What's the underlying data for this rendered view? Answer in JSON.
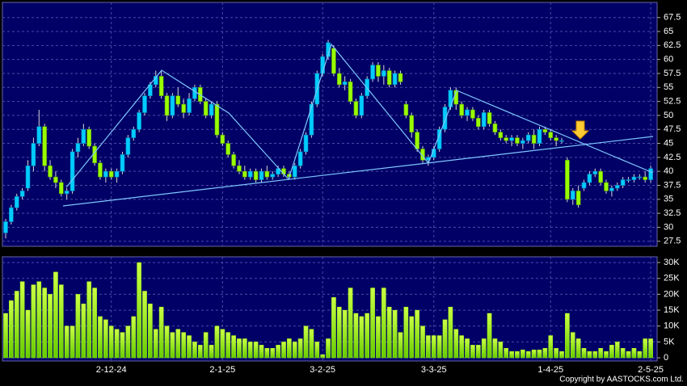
{
  "chart_data": [
    {
      "type": "candlestick",
      "up_color": "#00ccff",
      "down_color": "#99ff00",
      "wick_color": "#d8d8d8",
      "ylim": [
        26.6,
        70.2
      ],
      "yticks": [
        27.5,
        30,
        32.5,
        35,
        37.5,
        40,
        42.5,
        45,
        47.5,
        50,
        52.5,
        55,
        57.5,
        60,
        62.5,
        65,
        67.5
      ],
      "grid": true,
      "ohlc": [
        [
          29,
          31.5,
          28,
          31
        ],
        [
          31,
          34,
          30.5,
          33.5
        ],
        [
          33.5,
          36,
          33,
          35.5
        ],
        [
          35.5,
          37,
          35,
          36.5
        ],
        [
          37,
          42,
          36.5,
          41
        ],
        [
          41,
          46,
          40,
          45
        ],
        [
          45,
          51,
          44.5,
          48
        ],
        [
          48,
          48.5,
          40,
          41
        ],
        [
          41,
          42,
          38.5,
          39
        ],
        [
          39,
          40,
          37,
          38
        ],
        [
          38,
          38.5,
          35.5,
          36
        ],
        [
          36,
          37,
          35,
          36.5
        ],
        [
          36.5,
          44,
          36,
          43.5
        ],
        [
          43.5,
          46,
          42.5,
          45
        ],
        [
          45,
          48.5,
          44.5,
          47.5
        ],
        [
          47.5,
          48,
          44,
          44.5
        ],
        [
          44.5,
          45,
          41,
          41.5
        ],
        [
          41.5,
          42,
          38.5,
          39
        ],
        [
          39,
          40.5,
          38,
          40
        ],
        [
          40,
          40.5,
          38.5,
          39
        ],
        [
          39,
          40.5,
          38,
          40
        ],
        [
          40,
          43.5,
          39.5,
          43
        ],
        [
          43,
          46.5,
          42.5,
          46
        ],
        [
          46,
          48,
          45.5,
          47.5
        ],
        [
          47.5,
          51,
          47,
          50.5
        ],
        [
          50.5,
          54,
          50,
          53.5
        ],
        [
          53.5,
          56,
          53,
          55.5
        ],
        [
          55.5,
          58,
          55,
          57
        ],
        [
          57,
          58,
          53,
          53.5
        ],
        [
          53.5,
          54,
          49,
          50
        ],
        [
          50,
          54,
          49.5,
          53.5
        ],
        [
          53.5,
          55,
          51.5,
          52
        ],
        [
          52,
          53,
          49.5,
          50.5
        ],
        [
          50.5,
          54,
          50,
          53
        ],
        [
          53,
          55.5,
          52.5,
          55
        ],
        [
          55,
          55.5,
          52,
          52.5
        ],
        [
          52.5,
          53,
          49.5,
          50
        ],
        [
          50,
          52.5,
          49.5,
          52
        ],
        [
          52,
          52.5,
          46,
          46.5
        ],
        [
          46.5,
          47,
          44.5,
          45
        ],
        [
          45,
          45.5,
          42.5,
          43
        ],
        [
          43,
          43.5,
          40.5,
          41
        ],
        [
          41,
          42,
          39.5,
          40
        ],
        [
          40,
          41,
          38.5,
          39
        ],
        [
          39,
          40.5,
          38.5,
          40
        ],
        [
          40,
          40.5,
          38,
          38.5
        ],
        [
          38.5,
          40.5,
          38,
          40
        ],
        [
          40,
          41,
          38.5,
          39
        ],
        [
          39,
          40,
          38.5,
          39.5
        ],
        [
          39.5,
          41,
          39,
          40.5
        ],
        [
          40.5,
          41,
          39,
          39.5
        ],
        [
          39.5,
          40,
          38.5,
          39
        ],
        [
          39,
          41.5,
          38.5,
          41
        ],
        [
          41,
          44,
          40.5,
          43.5
        ],
        [
          43.5,
          47,
          43,
          46.5
        ],
        [
          46.5,
          52.5,
          46,
          52
        ],
        [
          52,
          58,
          51.5,
          57.5
        ],
        [
          57.5,
          61,
          57,
          60.5
        ],
        [
          60.5,
          63.5,
          60,
          63
        ],
        [
          62,
          62.5,
          57,
          57.5
        ],
        [
          57.5,
          58.5,
          55,
          55.5
        ],
        [
          55.5,
          57,
          54.5,
          56
        ],
        [
          56,
          56.5,
          52,
          52.5
        ],
        [
          52.5,
          53,
          49.5,
          50
        ],
        [
          50,
          54,
          49.5,
          53.5
        ],
        [
          53.5,
          57,
          53,
          56.5
        ],
        [
          56.5,
          59.5,
          56,
          59
        ],
        [
          59,
          59.5,
          56,
          57
        ],
        [
          57,
          59,
          55.5,
          58
        ],
        [
          58,
          58.5,
          55,
          55.5
        ],
        [
          55.5,
          58,
          55,
          57.5
        ],
        [
          57.5,
          58,
          55.5,
          56
        ],
        [
          52,
          52.5,
          49.5,
          50
        ],
        [
          50,
          50.5,
          46,
          47
        ],
        [
          47,
          47.5,
          43.5,
          44
        ],
        [
          44,
          44.5,
          41.5,
          42
        ],
        [
          42,
          43,
          41,
          42.5
        ],
        [
          42.5,
          44.5,
          42,
          44
        ],
        [
          44,
          48,
          43.5,
          47.5
        ],
        [
          47.5,
          52,
          47,
          51.5
        ],
        [
          51.5,
          55,
          51,
          54.5
        ],
        [
          54.5,
          55,
          51,
          52
        ],
        [
          52,
          52.5,
          49.5,
          50
        ],
        [
          50,
          51.5,
          49,
          51
        ],
        [
          51,
          51.5,
          49,
          49.5
        ],
        [
          49.5,
          50,
          47.5,
          48
        ],
        [
          48,
          51,
          47.5,
          50.5
        ],
        [
          50.5,
          51,
          48,
          48.5
        ],
        [
          48.5,
          49,
          46.5,
          47
        ],
        [
          47,
          47.5,
          45.5,
          46
        ],
        [
          46,
          46.5,
          45,
          45.5
        ],
        [
          45.5,
          46.5,
          44.5,
          46
        ],
        [
          46,
          46.5,
          44.5,
          45
        ],
        [
          45,
          46,
          44,
          45.5
        ],
        [
          45.5,
          47,
          45,
          46.5
        ],
        [
          46.5,
          47.5,
          44,
          45
        ],
        [
          45,
          48,
          44.5,
          47.5
        ],
        [
          47.5,
          48,
          46.5,
          47
        ],
        [
          47,
          47.5,
          45.5,
          46
        ],
        [
          46,
          46.5,
          44.5,
          45.5
        ],
        [
          45.5,
          46,
          45,
          45.5
        ],
        [
          42,
          42.5,
          34.5,
          35
        ],
        [
          35,
          37,
          34,
          36.5
        ],
        [
          36.5,
          37.5,
          33.5,
          34
        ],
        [
          37,
          38.5,
          36.5,
          38
        ],
        [
          38,
          40,
          37.5,
          39.5
        ],
        [
          39.5,
          40.5,
          39,
          40
        ],
        [
          40,
          40.5,
          37.5,
          38
        ],
        [
          38,
          38.5,
          36,
          36.5
        ],
        [
          36.5,
          37.5,
          35.5,
          37
        ],
        [
          37,
          38,
          36.5,
          37.5
        ],
        [
          37.5,
          39,
          37,
          38.5
        ],
        [
          38.5,
          39,
          38,
          38.5
        ],
        [
          38.5,
          39.5,
          38,
          39
        ],
        [
          39,
          39.5,
          38.5,
          39
        ],
        [
          39,
          40,
          38,
          38.5
        ],
        [
          38.5,
          41,
          38,
          40.5
        ]
      ]
    },
    {
      "type": "bar",
      "color": "#99ff00",
      "ylim": [
        -1000,
        31800
      ],
      "yticks": [
        0,
        {
          "value": 5000,
          "label": "5K"
        },
        {
          "value": 10000,
          "label": "10K"
        },
        {
          "value": 15000,
          "label": "15K"
        },
        {
          "value": 20000,
          "label": "20K"
        },
        {
          "value": 25000,
          "label": "25K"
        },
        {
          "value": 30000,
          "label": "30K"
        }
      ],
      "grid": true,
      "categories": [
        null,
        null,
        null,
        null,
        null,
        null,
        null,
        null,
        null,
        null,
        null,
        null,
        null,
        null,
        null,
        null,
        null,
        null,
        null,
        "2-12-24",
        null,
        null,
        null,
        null,
        null,
        null,
        null,
        null,
        null,
        null,
        null,
        null,
        null,
        null,
        null,
        null,
        null,
        null,
        null,
        "2-1-25",
        null,
        null,
        null,
        null,
        null,
        null,
        null,
        null,
        null,
        null,
        null,
        null,
        null,
        null,
        null,
        null,
        null,
        "3-2-25",
        null,
        null,
        null,
        null,
        null,
        null,
        null,
        null,
        null,
        null,
        null,
        null,
        null,
        null,
        null,
        null,
        null,
        null,
        null,
        "3-3-25",
        null,
        null,
        null,
        null,
        null,
        null,
        null,
        null,
        null,
        null,
        null,
        null,
        null,
        null,
        null,
        null,
        null,
        null,
        null,
        null,
        "1-4-25",
        null,
        null,
        null,
        null,
        null,
        null,
        null,
        null,
        null,
        null,
        null,
        null,
        null,
        null,
        null,
        null,
        null,
        "2-5-25"
      ],
      "values": [
        14000,
        18000,
        21000,
        24000,
        15000,
        23000,
        24000,
        22000,
        20000,
        27000,
        23000,
        10000,
        10000,
        20000,
        17000,
        24000,
        22000,
        13000,
        12000,
        10000,
        9000,
        8000,
        10000,
        13000,
        30000,
        21000,
        17000,
        9000,
        16000,
        10000,
        8000,
        9000,
        8000,
        7000,
        5000,
        4000,
        8000,
        4000,
        10000,
        9000,
        8000,
        7000,
        6000,
        6000,
        5000,
        5000,
        4000,
        3000,
        3000,
        4000,
        5000,
        6000,
        5000,
        6000,
        10000,
        9000,
        5000,
        1000,
        6000,
        19000,
        16000,
        15000,
        22000,
        14000,
        13000,
        14000,
        22000,
        13000,
        22000,
        16000,
        15000,
        8000,
        16000,
        13000,
        15000,
        10000,
        7000,
        7000,
        7000,
        12000,
        16000,
        9000,
        7000,
        6000,
        4000,
        4000,
        6000,
        14000,
        6000,
        5000,
        3000,
        2000,
        2000,
        2500,
        2000,
        2500,
        2500,
        3000,
        7000,
        3000,
        2000,
        14000,
        8000,
        6000,
        3000,
        2000,
        2000,
        3000,
        2000,
        4000,
        5000,
        3000,
        2000,
        3000,
        2000,
        6000,
        6000
      ]
    }
  ],
  "copyright": "Copyright by AASTOCKS.com Ltd."
}
